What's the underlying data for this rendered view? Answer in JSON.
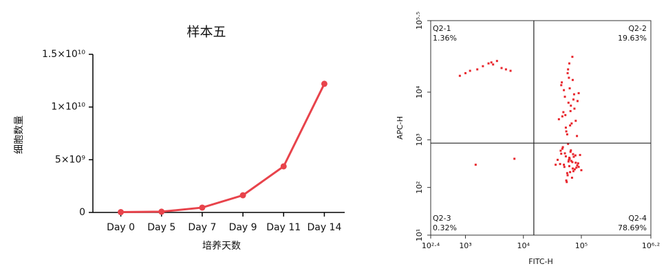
{
  "chart_data": [
    {
      "type": "line",
      "title": "样本五",
      "xlabel": "培养天数",
      "ylabel": "细胞数量",
      "categories": [
        "Day 0",
        "Day 5",
        "Day 7",
        "Day 9",
        "Day 11",
        "Day 14"
      ],
      "values": [
        30000000,
        70000000,
        460000000,
        1630000000,
        4370000000,
        12200000000
      ],
      "color": "#e8434b",
      "ylim": [
        0,
        15000000000
      ],
      "yticks": [
        0,
        {
          "value": 5000000000,
          "label": "5×10⁹"
        },
        {
          "value": 10000000000,
          "label": "1×10¹⁰"
        },
        {
          "value": 15000000000,
          "label": "1.5×10¹⁰"
        }
      ],
      "grid": false
    },
    {
      "type": "scatter",
      "xlabel": "FITC-H",
      "ylabel": "APC-H",
      "xscale": "log",
      "yscale": "log",
      "color": "#e8262d",
      "xlim": [
        251.19,
        1584893.2
      ],
      "ylim": [
        10,
        316227.8
      ],
      "xticks": [
        {
          "value": 251.19,
          "label": "10²·⁴"
        },
        {
          "value": 1000,
          "label": "10³"
        },
        {
          "value": 10000,
          "label": "10⁴"
        },
        {
          "value": 100000,
          "label": "10⁵"
        },
        {
          "value": 1584893.2,
          "label": "10⁶·²"
        }
      ],
      "yticks": [
        {
          "value": 10,
          "label": "10¹"
        },
        {
          "value": 100,
          "label": "10²"
        },
        {
          "value": 1000,
          "label": "10³"
        },
        {
          "value": 10000,
          "label": "10⁴"
        },
        {
          "value": 316227.8,
          "label": "10⁵·⁵"
        }
      ],
      "gate": {
        "x": 15136,
        "y": 851
      },
      "quadrants": {
        "names": [
          "Q2-1",
          "Q2-2",
          "Q2-3",
          "Q2-4"
        ],
        "values": [
          1.36,
          19.63,
          0.32,
          78.69
        ],
        "value_labels": [
          "1.36%",
          "19.63%",
          "0.32%",
          "78.69%"
        ]
      },
      "x": [
        50000,
        62000,
        71000,
        45000,
        80000,
        58000,
        66000,
        39000,
        90000,
        54000,
        73000,
        60000,
        48000,
        85000,
        69000,
        52000,
        63000,
        77000,
        43000,
        95000,
        57000,
        65000,
        70000,
        47000,
        82000,
        61000,
        55000,
        74000,
        36000,
        100000,
        59000,
        67000,
        51000,
        79000,
        64000,
        44000,
        88000,
        56000,
        72000,
        62000,
        55000,
        68000,
        47000,
        76000,
        60000,
        52000,
        84000,
        63000,
        41000,
        71000,
        58000,
        66000,
        49000,
        90000,
        62000,
        54000,
        73000,
        45000,
        80000,
        59000,
        65000,
        50000,
        70000,
        57000,
        86000,
        61000,
        53000,
        75000,
        46000,
        64000,
        800,
        1200,
        1600,
        2000,
        2500,
        3000,
        3500,
        4200,
        5000,
        6000,
        1000,
        2800,
        1500,
        7000
      ],
      "y": [
        300,
        420,
        250,
        510,
        330,
        180,
        600,
        380,
        270,
        450,
        220,
        350,
        700,
        290,
        160,
        520,
        400,
        240,
        310,
        480,
        200,
        560,
        340,
        650,
        260,
        380,
        140,
        440,
        300,
        230,
        820,
        360,
        270,
        470,
        210,
        590,
        320,
        130,
        500,
        280,
        1500,
        2200,
        3100,
        4500,
        6000,
        8000,
        1200,
        12000,
        2700,
        18000,
        25000,
        5200,
        3800,
        9500,
        40000,
        1800,
        7000,
        14000,
        2500,
        30000,
        4000,
        11000,
        55000,
        1300,
        6500,
        20000,
        3300,
        9000,
        16000,
        2000,
        22000,
        28000,
        30000,
        35000,
        40000,
        38000,
        45000,
        32000,
        30000,
        28000,
        25000,
        42000,
        300,
        400
      ]
    }
  ]
}
